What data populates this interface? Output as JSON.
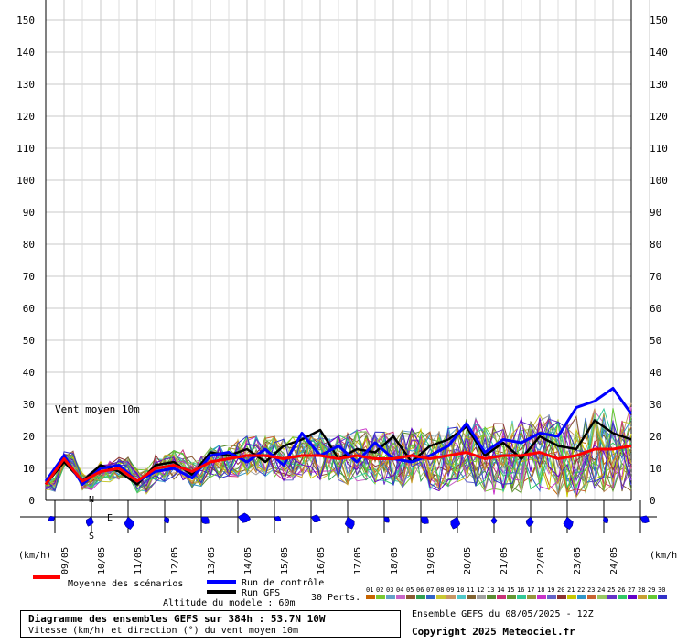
{
  "chart_data": {
    "type": "line",
    "subtitle": "Vent moyen 10m",
    "ylim": [
      0,
      150
    ],
    "y_ticks": [
      0,
      10,
      20,
      30,
      40,
      50,
      60,
      70,
      80,
      90,
      100,
      110,
      120,
      130,
      140,
      150
    ],
    "x_range": [
      "08/05 12h",
      "24/05 12h"
    ],
    "x_date_labels": [
      "09/05",
      "10/05",
      "11/05",
      "12/05",
      "13/05",
      "14/05",
      "15/05",
      "16/05",
      "17/05",
      "18/05",
      "19/05",
      "20/05",
      "21/05",
      "22/05",
      "23/05",
      "24/05"
    ],
    "unit_label": "(km/h)",
    "grid": true,
    "series": [
      {
        "name": "Moyenne des scénarios",
        "color": "#ff0000",
        "x_hours": [
          0,
          12,
          24,
          36,
          48,
          60,
          72,
          84,
          96,
          108,
          120,
          132,
          144,
          156,
          168,
          180,
          192,
          204,
          216,
          228,
          240,
          252,
          264,
          276,
          288,
          300,
          312,
          324,
          336,
          348,
          360,
          372,
          384
        ],
        "values": [
          5,
          13,
          6,
          9,
          10,
          6,
          10,
          11,
          9,
          12,
          13,
          14,
          14,
          13,
          14,
          14,
          13,
          14,
          13,
          13,
          14,
          13,
          14,
          15,
          13,
          14,
          14,
          15,
          13,
          14,
          16,
          16,
          17
        ]
      },
      {
        "name": "Run de contrôle",
        "color": "#0000ff",
        "x_hours": [
          0,
          12,
          24,
          36,
          48,
          60,
          72,
          84,
          96,
          108,
          120,
          132,
          144,
          156,
          168,
          180,
          192,
          204,
          216,
          228,
          240,
          252,
          264,
          276,
          288,
          300,
          312,
          324,
          336,
          348,
          360,
          372,
          384
        ],
        "values": [
          6,
          14,
          5,
          10,
          11,
          6,
          9,
          10,
          7,
          14,
          15,
          12,
          16,
          11,
          21,
          14,
          17,
          12,
          18,
          13,
          12,
          14,
          17,
          24,
          15,
          19,
          18,
          21,
          20,
          29,
          31,
          35,
          27
        ]
      },
      {
        "name": "Run GFS",
        "color": "#000000",
        "x_hours": [
          0,
          12,
          24,
          36,
          48,
          60,
          72,
          84,
          96,
          108,
          120,
          132,
          144,
          156,
          168,
          180,
          192,
          204,
          216,
          228,
          240,
          252,
          264,
          276,
          288,
          300,
          312,
          324,
          336,
          348,
          360,
          372,
          384
        ],
        "values": [
          5,
          12,
          6,
          11,
          9,
          5,
          11,
          12,
          8,
          15,
          14,
          16,
          12,
          17,
          19,
          22,
          13,
          16,
          15,
          20,
          12,
          17,
          19,
          23,
          14,
          18,
          13,
          20,
          17,
          16,
          25,
          21,
          19
        ]
      }
    ],
    "legend": [
      "Moyenne des scénarios",
      "Run de contrôle",
      "Run GFS",
      "30 Perts."
    ],
    "perturbation_labels": [
      "01",
      "02",
      "03",
      "04",
      "05",
      "06",
      "07",
      "08",
      "09",
      "10",
      "11",
      "12",
      "13",
      "14",
      "15",
      "16",
      "17",
      "18",
      "19",
      "20",
      "21",
      "22",
      "23",
      "24",
      "25",
      "26",
      "27",
      "28",
      "29",
      "30"
    ],
    "perturbation_colors": [
      "#c86400",
      "#78c832",
      "#64a0c8",
      "#c864c8",
      "#8c5a32",
      "#32a050",
      "#3264c8",
      "#c8c832",
      "#c89664",
      "#50c8c8",
      "#826432",
      "#a0a0a0",
      "#5a8c32",
      "#c83278",
      "#649632",
      "#32c896",
      "#96963c",
      "#c832c8",
      "#6464c8",
      "#8c3232",
      "#c8c800",
      "#3296c8",
      "#c86432",
      "#96c864",
      "#6432c8",
      "#32c864",
      "#6400c8",
      "#c8a032",
      "#64c832",
      "#3232c8"
    ]
  },
  "compass": {
    "n": "N",
    "s": "S",
    "e": "E"
  },
  "footer": {
    "altitude": "Altitude du modele : 60m",
    "title": "Diagramme des ensembles GEFS sur 384h : 53.7N 10W",
    "subtitle": "Vitesse (km/h) et direction (°) du vent moyen 10m",
    "ensemble": "Ensemble GEFS du 08/05/2025 - 12Z",
    "copyright": "Copyright 2025 Meteociel.fr"
  }
}
